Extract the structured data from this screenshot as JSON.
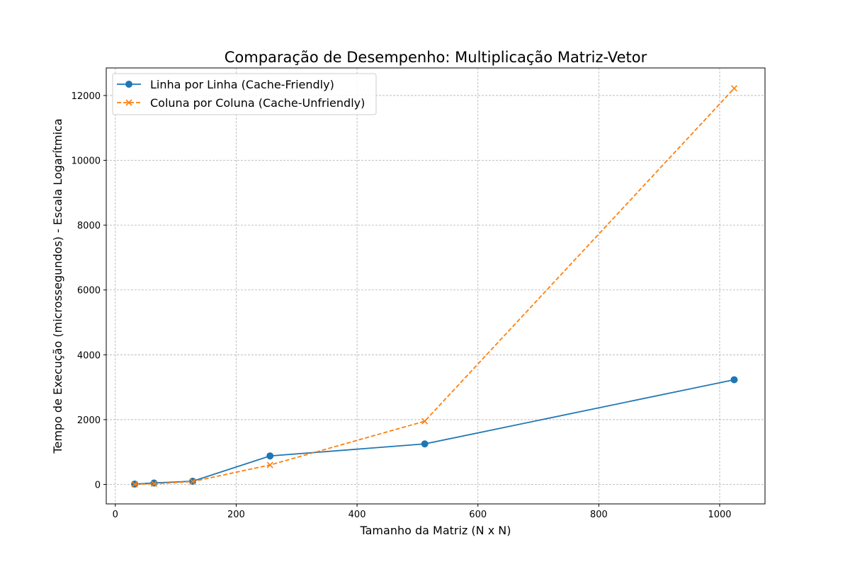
{
  "chart_data": {
    "type": "line",
    "title": "Comparação de Desempenho: Multiplicação Matriz-Vetor",
    "xlabel": "Tamanho da Matriz (N x N)",
    "ylabel": "Tempo de Execução (microssegundos) - Escala Logarítmica",
    "xlim": [
      -15,
      1075
    ],
    "ylim": [
      -600,
      12850
    ],
    "x_ticks": [
      0,
      200,
      400,
      600,
      800,
      1000
    ],
    "y_ticks": [
      0,
      2000,
      4000,
      6000,
      8000,
      10000,
      12000
    ],
    "grid": true,
    "legend_position": "top-left",
    "series": [
      {
        "name": "Linha por Linha (Cache-Friendly)",
        "color": "#1f77b4",
        "line_style": "solid",
        "marker": "circle",
        "x": [
          32,
          64,
          128,
          256,
          512,
          1024
        ],
        "y": [
          10,
          45,
          100,
          880,
          1250,
          3230
        ]
      },
      {
        "name": "Coluna por Coluna (Cache-Unfriendly)",
        "color": "#ff7f0e",
        "line_style": "dashed",
        "marker": "x",
        "x": [
          32,
          64,
          128,
          256,
          512,
          1024
        ],
        "y": [
          5,
          20,
          90,
          600,
          1950,
          12220
        ]
      }
    ]
  }
}
